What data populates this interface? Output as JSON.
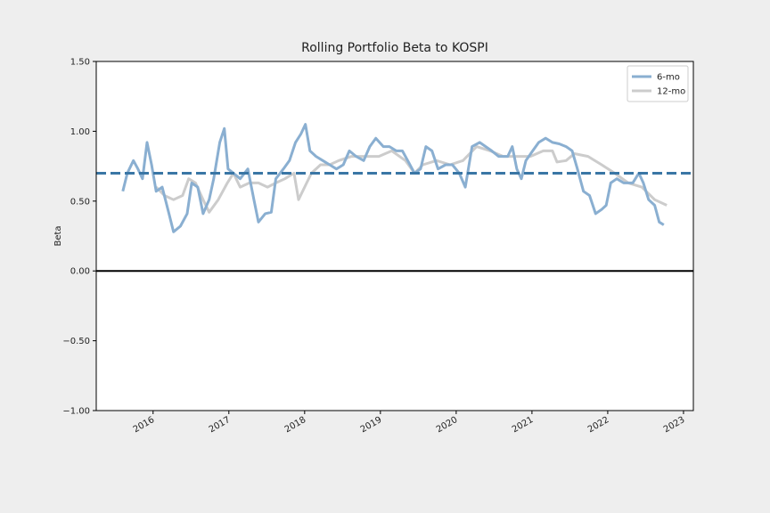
{
  "chart_data": {
    "type": "line",
    "title": "Rolling Portfolio Beta to KOSPI",
    "y_label": "Beta",
    "xlim": [
      2015.25,
      2023.13
    ],
    "xticks": [
      2016,
      2017,
      2018,
      2019,
      2020,
      2021,
      2022,
      2023
    ],
    "ylim": [
      -1.0,
      1.5
    ],
    "yticks": [
      {
        "value": 1.5,
        "label": "1.50"
      },
      {
        "value": 1.0,
        "label": "1.00"
      },
      {
        "value": 0.5,
        "label": "0.50"
      },
      {
        "value": 0,
        "label": "0.00"
      },
      {
        "value": -0.5,
        "label": "−0.50"
      },
      {
        "value": -1.0,
        "label": "−1.00"
      }
    ],
    "legend": "upper right",
    "reference_lines": [
      {
        "value": 0.7,
        "color": "#3a76a5",
        "style": "dashed"
      },
      {
        "value": 0,
        "color": "#000000",
        "style": "solid"
      }
    ],
    "series": [
      {
        "name": "6-mo",
        "color": "#8aafd1",
        "x": [
          2015.6,
          2015.66,
          2015.74,
          2015.8,
          2015.86,
          2015.92,
          2015.98,
          2016.04,
          2016.12,
          2016.21,
          2016.27,
          2016.36,
          2016.45,
          2016.51,
          2016.59,
          2016.66,
          2016.74,
          2016.8,
          2016.88,
          2016.94,
          2016.99,
          2017.06,
          2017.15,
          2017.25,
          2017.33,
          2017.39,
          2017.48,
          2017.56,
          2017.62,
          2017.72,
          2017.8,
          2017.88,
          2017.95,
          2018.01,
          2018.07,
          2018.15,
          2018.24,
          2018.33,
          2018.42,
          2018.51,
          2018.59,
          2018.68,
          2018.78,
          2018.86,
          2018.94,
          2019.04,
          2019.12,
          2019.21,
          2019.29,
          2019.36,
          2019.45,
          2019.53,
          2019.6,
          2019.68,
          2019.76,
          2019.86,
          2019.95,
          2020.04,
          2020.12,
          2020.21,
          2020.31,
          2020.39,
          2020.47,
          2020.56,
          2020.68,
          2020.74,
          2020.8,
          2020.86,
          2020.92,
          2021.01,
          2021.09,
          2021.18,
          2021.27,
          2021.36,
          2021.45,
          2021.53,
          2021.6,
          2021.68,
          2021.76,
          2021.84,
          2021.92,
          2021.98,
          2022.04,
          2022.12,
          2022.21,
          2022.33,
          2022.41,
          2022.47,
          2022.54,
          2022.62,
          2022.68,
          2022.74
        ],
        "values": [
          0.57,
          0.7,
          0.79,
          0.73,
          0.66,
          0.92,
          0.76,
          0.57,
          0.6,
          0.41,
          0.28,
          0.32,
          0.41,
          0.63,
          0.6,
          0.41,
          0.51,
          0.66,
          0.92,
          1.02,
          0.73,
          0.7,
          0.66,
          0.73,
          0.51,
          0.35,
          0.41,
          0.42,
          0.66,
          0.73,
          0.79,
          0.92,
          0.98,
          1.05,
          0.86,
          0.82,
          0.79,
          0.76,
          0.73,
          0.76,
          0.86,
          0.82,
          0.79,
          0.89,
          0.95,
          0.89,
          0.89,
          0.86,
          0.86,
          0.79,
          0.7,
          0.73,
          0.89,
          0.86,
          0.73,
          0.76,
          0.76,
          0.7,
          0.6,
          0.89,
          0.92,
          0.89,
          0.86,
          0.82,
          0.82,
          0.89,
          0.73,
          0.66,
          0.79,
          0.86,
          0.92,
          0.95,
          0.92,
          0.91,
          0.89,
          0.86,
          0.73,
          0.57,
          0.54,
          0.41,
          0.44,
          0.47,
          0.63,
          0.66,
          0.63,
          0.63,
          0.7,
          0.63,
          0.51,
          0.47,
          0.35,
          0.33
        ]
      },
      {
        "name": "12-mo",
        "color": "#cccccc",
        "x": [
          2016.04,
          2016.15,
          2016.27,
          2016.39,
          2016.47,
          2016.56,
          2016.66,
          2016.74,
          2016.86,
          2016.98,
          2017.06,
          2017.15,
          2017.27,
          2017.39,
          2017.51,
          2017.62,
          2017.74,
          2017.86,
          2017.92,
          2018.0,
          2018.09,
          2018.21,
          2018.33,
          2018.45,
          2018.62,
          2018.8,
          2018.98,
          2019.15,
          2019.33,
          2019.45,
          2019.56,
          2019.74,
          2019.92,
          2020.09,
          2020.27,
          2020.45,
          2020.62,
          2020.8,
          2020.98,
          2021.15,
          2021.27,
          2021.33,
          2021.45,
          2021.56,
          2021.74,
          2021.92,
          2022.09,
          2022.27,
          2022.45,
          2022.62,
          2022.78
        ],
        "values": [
          0.6,
          0.54,
          0.51,
          0.54,
          0.66,
          0.63,
          0.51,
          0.42,
          0.51,
          0.63,
          0.7,
          0.6,
          0.63,
          0.63,
          0.6,
          0.63,
          0.66,
          0.7,
          0.51,
          0.6,
          0.7,
          0.76,
          0.76,
          0.79,
          0.82,
          0.82,
          0.82,
          0.86,
          0.79,
          0.7,
          0.76,
          0.79,
          0.76,
          0.79,
          0.89,
          0.86,
          0.82,
          0.82,
          0.82,
          0.86,
          0.86,
          0.78,
          0.79,
          0.84,
          0.82,
          0.76,
          0.7,
          0.63,
          0.6,
          0.51,
          0.47
        ]
      }
    ]
  }
}
